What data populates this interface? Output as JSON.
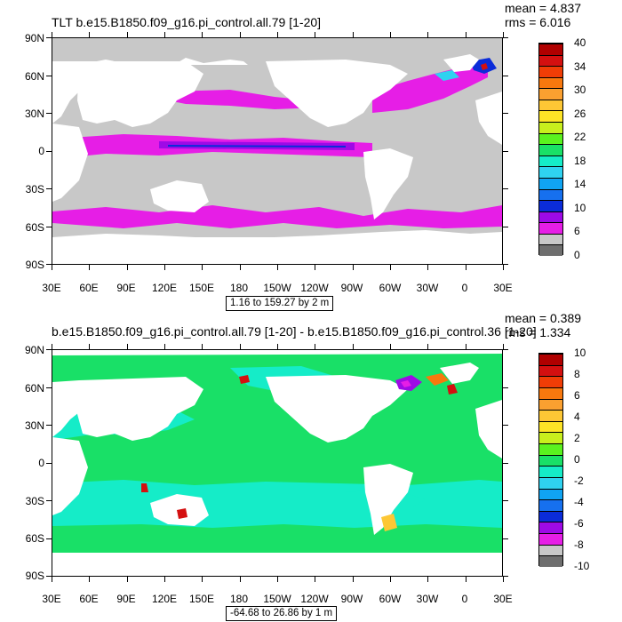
{
  "chart_data": [
    {
      "type": "heatmap",
      "title": "TLT b.e15.B1850.f09_g16.pi_control.all.79 [1-20]",
      "stats": {
        "mean": "mean = 4.837",
        "rms": "rms = 6.016"
      },
      "range_label": "1.16 to 159.27 by 2 m",
      "y_ticks": [
        "90N",
        "60N",
        "30N",
        "0",
        "30S",
        "60S",
        "90S"
      ],
      "x_ticks": [
        "30E",
        "60E",
        "90E",
        "120E",
        "150E",
        "180",
        "150W",
        "120W",
        "90W",
        "60W",
        "30W",
        "0",
        "30E"
      ],
      "colorbar": {
        "levels": [
          "0",
          "6",
          "10",
          "14",
          "18",
          "22",
          "26",
          "30",
          "34",
          "40"
        ],
        "colors": [
          "#6e6e6e",
          "#c8c8c8",
          "#e61ee6",
          "#9e0ae6",
          "#0b2cd9",
          "#1670ef",
          "#10a4f2",
          "#2fd2f0",
          "#15ecc8",
          "#19e067",
          "#5af21f",
          "#c8ef1d",
          "#fde426",
          "#fdc735",
          "#fba030",
          "#f8780e",
          "#f03d06",
          "#d41010",
          "#b00000"
        ]
      }
    },
    {
      "type": "heatmap",
      "title": "b.e15.B1850.f09_g16.pi_control.all.79 [1-20] - b.e15.B1850.f09_g16.pi_control.36 [1-20]",
      "stats": {
        "mean": "mean = 0.389",
        "rms": "rms = 1.334"
      },
      "range_label": "-64.68 to 26.86 by 1 m",
      "y_ticks": [
        "90N",
        "60N",
        "30N",
        "0",
        "30S",
        "60S",
        "90S"
      ],
      "x_ticks": [
        "30E",
        "60E",
        "90E",
        "120E",
        "150E",
        "180",
        "150W",
        "120W",
        "90W",
        "60W",
        "30W",
        "0",
        "30E"
      ],
      "colorbar": {
        "levels": [
          "-10",
          "-8",
          "-6",
          "-4",
          "-2",
          "0",
          "2",
          "4",
          "6",
          "8",
          "10"
        ],
        "colors": [
          "#6e6e6e",
          "#c8c8c8",
          "#e61ee6",
          "#9e0ae6",
          "#0b2cd9",
          "#1670ef",
          "#10a4f2",
          "#2fd2f0",
          "#15ecc8",
          "#19e067",
          "#5af21f",
          "#c8ef1d",
          "#fde426",
          "#fdc735",
          "#fba030",
          "#f8780e",
          "#f03d06",
          "#d41010",
          "#b00000"
        ]
      }
    }
  ]
}
